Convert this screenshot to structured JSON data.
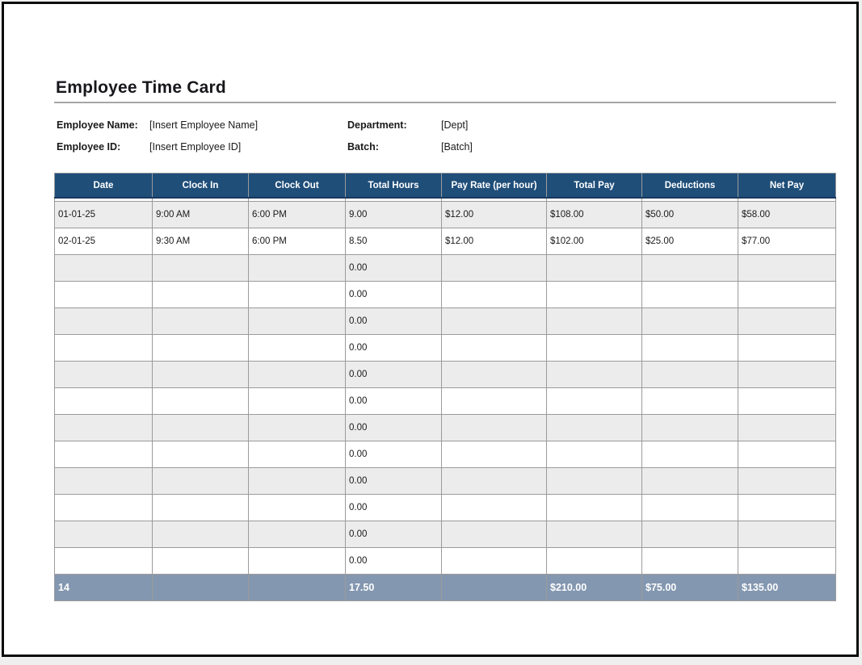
{
  "page": {
    "title": "Employee Time Card"
  },
  "info": {
    "employee_name_label": "Employee Name:",
    "employee_name_value": "[Insert Employee Name]",
    "employee_id_label": "Employee ID:",
    "employee_id_value": "[Insert Employee ID]",
    "department_label": "Department:",
    "department_value": "[Dept]",
    "batch_label": "Batch:",
    "batch_value": "[Batch]"
  },
  "table": {
    "columns": [
      "Date",
      "Clock In",
      "Clock Out",
      "Total Hours",
      "Pay Rate (per hour)",
      "Total Pay",
      "Deductions",
      "Net Pay"
    ],
    "rows": [
      [
        "01-01-25",
        "9:00 AM",
        "6:00 PM",
        "9.00",
        "$12.00",
        "$108.00",
        "$50.00",
        "$58.00"
      ],
      [
        "02-01-25",
        "9:30 AM",
        "6:00 PM",
        "8.50",
        "$12.00",
        "$102.00",
        "$25.00",
        "$77.00"
      ],
      [
        "",
        "",
        "",
        "0.00",
        "",
        "",
        "",
        ""
      ],
      [
        "",
        "",
        "",
        "0.00",
        "",
        "",
        "",
        ""
      ],
      [
        "",
        "",
        "",
        "0.00",
        "",
        "",
        "",
        ""
      ],
      [
        "",
        "",
        "",
        "0.00",
        "",
        "",
        "",
        ""
      ],
      [
        "",
        "",
        "",
        "0.00",
        "",
        "",
        "",
        ""
      ],
      [
        "",
        "",
        "",
        "0.00",
        "",
        "",
        "",
        ""
      ],
      [
        "",
        "",
        "",
        "0.00",
        "",
        "",
        "",
        ""
      ],
      [
        "",
        "",
        "",
        "0.00",
        "",
        "",
        "",
        ""
      ],
      [
        "",
        "",
        "",
        "0.00",
        "",
        "",
        "",
        ""
      ],
      [
        "",
        "",
        "",
        "0.00",
        "",
        "",
        "",
        ""
      ],
      [
        "",
        "",
        "",
        "0.00",
        "",
        "",
        "",
        ""
      ],
      [
        "",
        "",
        "",
        "0.00",
        "",
        "",
        "",
        ""
      ]
    ],
    "total_row": [
      "14",
      "",
      "",
      "17.50",
      "",
      "$210.00",
      "$75.00",
      "$135.00"
    ]
  },
  "colors": {
    "header_bg": "#1f4e79",
    "total_row_bg": "#8497b0",
    "stripe_bg": "#ececec",
    "grid_line": "#9b9b9b",
    "page_border": "#0a0a0a"
  }
}
